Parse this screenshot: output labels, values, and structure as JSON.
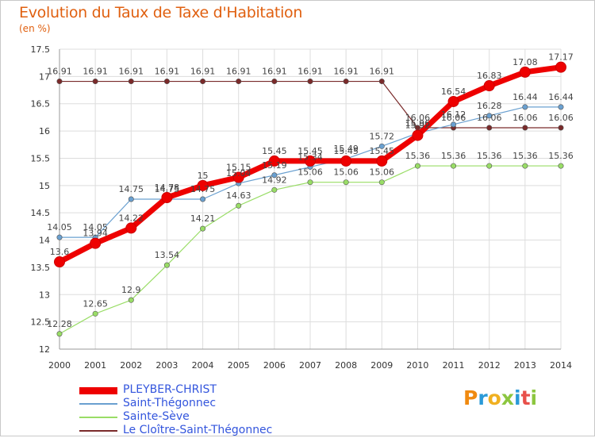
{
  "title": "Evolution du Taux de Taxe d'Habitation",
  "unit_label": "(en %)",
  "logo": {
    "letters": [
      "P",
      "r",
      "o",
      "x",
      "i",
      "t",
      "i"
    ],
    "colors": [
      "#f08a10",
      "#2a9ad8",
      "#f0b020",
      "#8cc63f",
      "#2a9ad8",
      "#e8504a",
      "#8cc63f"
    ]
  },
  "chart_data": {
    "type": "line",
    "x": [
      2000,
      2001,
      2002,
      2003,
      2004,
      2005,
      2006,
      2007,
      2008,
      2009,
      2010,
      2011,
      2012,
      2013,
      2014
    ],
    "ylim": [
      12,
      17.5
    ],
    "yticks": [
      12,
      12.5,
      13,
      13.5,
      14,
      14.5,
      15,
      15.5,
      16,
      16.5,
      17,
      17.5
    ],
    "grid": true,
    "legend_position": "bottom-left",
    "series": [
      {
        "name": "PLEYBER-CHRIST",
        "color": "#ee0000",
        "values": [
          13.6,
          13.94,
          14.22,
          14.78,
          15,
          15.15,
          15.45,
          15.45,
          15.45,
          15.45,
          15.92,
          16.54,
          16.83,
          17.08,
          17.17
        ]
      },
      {
        "name": "Saint-Thégonnec",
        "color": "#6aa0d0",
        "values": [
          14.05,
          14.05,
          14.75,
          14.75,
          14.75,
          15.04,
          15.19,
          15.34,
          15.49,
          15.72,
          15.96,
          16.12,
          16.28,
          16.44,
          16.44
        ]
      },
      {
        "name": "Sainte-Sève",
        "color": "#99dd66",
        "values": [
          12.28,
          12.65,
          12.9,
          13.54,
          14.21,
          14.63,
          14.92,
          15.06,
          15.06,
          15.06,
          15.36,
          15.36,
          15.36,
          15.36,
          15.36
        ]
      },
      {
        "name": "Le Cloître-Saint-Thégonnec",
        "color": "#7a2a2a",
        "values": [
          16.91,
          16.91,
          16.91,
          16.91,
          16.91,
          16.91,
          16.91,
          16.91,
          16.91,
          16.91,
          16.06,
          16.06,
          16.06,
          16.06,
          16.06
        ]
      }
    ]
  }
}
